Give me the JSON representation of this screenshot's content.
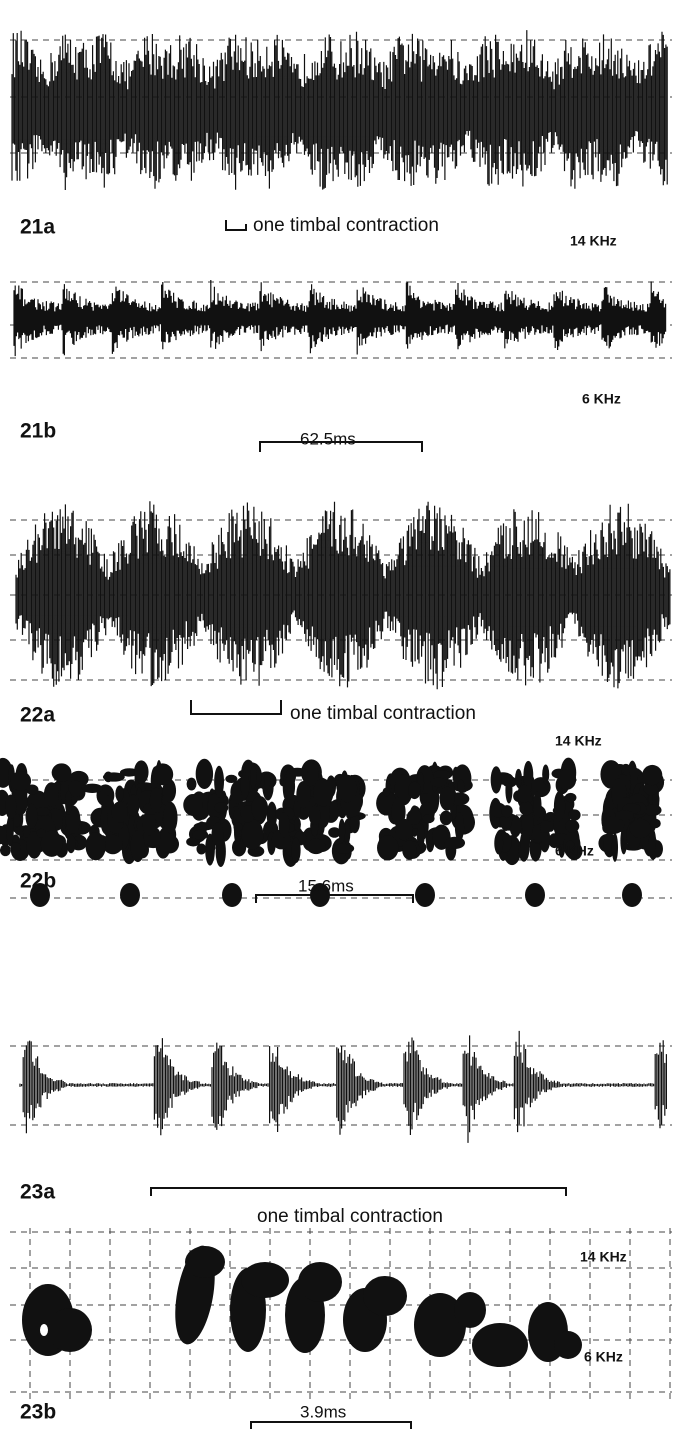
{
  "figures": [
    {
      "oscillogram_label": "21a",
      "annotation": "one timbal contraction",
      "freq_high": "14 KHz",
      "sonagram_label": "21b",
      "freq_low": "6 KHz",
      "scale": "62.5ms"
    },
    {
      "oscillogram_label": "22a",
      "annotation": "one timbal contraction",
      "freq_high": "14 KHz",
      "sonagram_label": "22b",
      "freq_low": "6 KHz",
      "scale": "15.6ms"
    },
    {
      "oscillogram_label": "23a",
      "annotation": "one timbal contraction",
      "freq_high": "14 KHz",
      "sonagram_label": "23b",
      "freq_low": "6 KHz",
      "scale": "3.9ms"
    }
  ]
}
